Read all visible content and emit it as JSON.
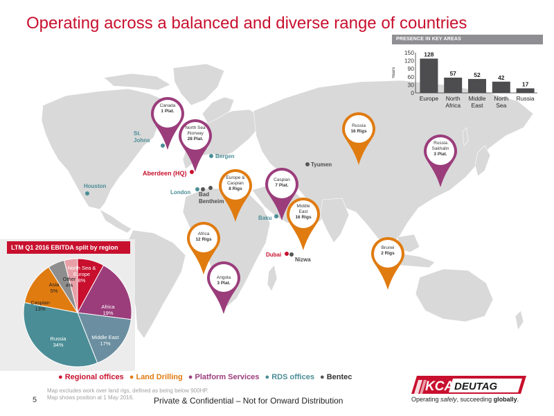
{
  "title": "Operating across a balanced and diverse range of countries",
  "presence": {
    "header": "PRESENCE IN KEY AREAS",
    "ylabel": "Years",
    "yticks": [
      "150",
      "120",
      "90",
      "60",
      "30",
      "0"
    ],
    "categories": [
      "Europe",
      "North Africa",
      "Middle East",
      "North Sea",
      "Russia"
    ],
    "values": [
      "128",
      "57",
      "52",
      "42",
      "17"
    ]
  },
  "chart_data": [
    {
      "type": "bar",
      "title": "PRESENCE IN KEY AREAS",
      "categories": [
        "Europe",
        "North Africa",
        "Middle East",
        "North Sea",
        "Russia"
      ],
      "values": [
        128,
        57,
        52,
        42,
        17
      ],
      "ylabel": "Years",
      "ylim": [
        0,
        150
      ],
      "color": "#4d4d4f"
    },
    {
      "type": "pie",
      "title": "LTM Q1 2016 EBITDA split by region",
      "labels": [
        "North Sea & Europe",
        "Africa",
        "Middle East",
        "Russia",
        "Caspian",
        "Asia",
        "Other"
      ],
      "values": [
        8,
        19,
        17,
        34,
        13,
        5,
        4
      ],
      "colors": [
        "#c8102e",
        "#9b3d7b",
        "#6b8fa0",
        "#4a8d96",
        "#e07b10",
        "#8e8e8e",
        "#e8a0a8"
      ]
    }
  ],
  "pie": {
    "header": "LTM Q1 2016 EBITDA split by region",
    "labels": [
      {
        "name": "North Sea & Europe",
        "line1": "North Sea &",
        "line2": "Europe",
        "pct": "8%"
      },
      {
        "name": "Africa",
        "line1": "Africa",
        "pct": "19%"
      },
      {
        "name": "Middle East",
        "line1": "Middle East",
        "pct": "17%"
      },
      {
        "name": "Russia",
        "line1": "Russia",
        "pct": "34%"
      },
      {
        "name": "Caspian",
        "line1": "Caspian",
        "pct": "13%"
      },
      {
        "name": "Asia",
        "line1": "Asia",
        "pct": "5%"
      },
      {
        "name": "Other",
        "line1": "Other",
        "pct": "4%"
      }
    ]
  },
  "cities": {
    "st_johns": "St. Johns",
    "houston": "Houston",
    "bergen": "Bergen",
    "aberdeen": "Aberdeen (HQ)",
    "london": "London",
    "bad_bentheim": "Bad Bentheim",
    "tyumen": "Tyumen",
    "baku": "Baku",
    "dubai": "Dubai",
    "nizwa": "Nizwa"
  },
  "pins": {
    "canada": {
      "name": "Canada",
      "count": "1 Plat."
    },
    "north_sea": {
      "name": "North Sea /Norway",
      "count": "28 Plat."
    },
    "europe_caspian": {
      "name": "Europe & Caspian",
      "count": "8 Rigs"
    },
    "caspian": {
      "name": "Caspian",
      "count": "7 Plat."
    },
    "middle_east": {
      "name": "Middle East",
      "count": "16 Rigs"
    },
    "russia": {
      "name": "Russia",
      "count": "16 Rigs"
    },
    "russia_sakhalin": {
      "name": "Russia Sakhalin",
      "count": "3 Plat."
    },
    "africa": {
      "name": "Africa",
      "count": "12 Rigs"
    },
    "angola": {
      "name": "Angola",
      "count": "3 Plat."
    },
    "brunei": {
      "name": "Brunei",
      "count": "2 Rigs"
    }
  },
  "legend": {
    "regional": "Regional offices",
    "land": "Land Drilling",
    "platform": "Platform Services",
    "rds": "RDS offices",
    "bentec": "Bentec"
  },
  "colors": {
    "regional": "#c8102e",
    "land": "#e07b10",
    "platform": "#9b3d7b",
    "rds": "#4a8d96",
    "bentec": "#555555"
  },
  "note": {
    "line1": "Map excludes work over land rigs, defined as being below 900HP.",
    "line2": "Map shows position at 1 May 2016."
  },
  "footer": {
    "page_number": "5",
    "text": "Private & Confidential – Not for Onward Distribution"
  },
  "logo": {
    "text": "KCA DEUTAG",
    "tagline_prefix": "Operating ",
    "tagline_italic": "safely",
    "tagline_mid": ", succeeding ",
    "tagline_bold": "globally",
    "tagline_end": "."
  }
}
